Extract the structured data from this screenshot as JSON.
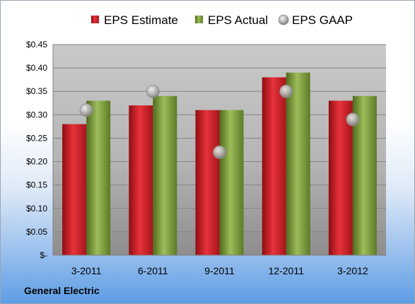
{
  "company": "General Electric",
  "chart_data": {
    "type": "bar",
    "title": "",
    "xlabel": "",
    "ylabel": "",
    "categories": [
      "3-2011",
      "6-2011",
      "9-2011",
      "12-2011",
      "3-2012"
    ],
    "series": [
      {
        "name": "EPS Estimate",
        "kind": "bar",
        "color": "#d0202a",
        "values": [
          0.28,
          0.32,
          0.31,
          0.38,
          0.33
        ]
      },
      {
        "name": "EPS Actual",
        "kind": "bar",
        "color": "#7c9a3a",
        "values": [
          0.33,
          0.34,
          0.31,
          0.39,
          0.34
        ]
      },
      {
        "name": "EPS GAAP",
        "kind": "marker",
        "color": "#a8a8a8",
        "values": [
          0.31,
          0.35,
          0.22,
          0.35,
          0.29
        ]
      }
    ],
    "ylim": [
      0,
      0.45
    ],
    "yticks": [
      0,
      0.05,
      0.1,
      0.15,
      0.2,
      0.25,
      0.3,
      0.35,
      0.4,
      0.45
    ],
    "ytick_labels": [
      "$-",
      "$0.05",
      "$0.10",
      "$0.15",
      "$0.20",
      "$0.25",
      "$0.30",
      "$0.35",
      "$0.40",
      "$0.45"
    ],
    "grid": true,
    "legend_position": "top"
  }
}
